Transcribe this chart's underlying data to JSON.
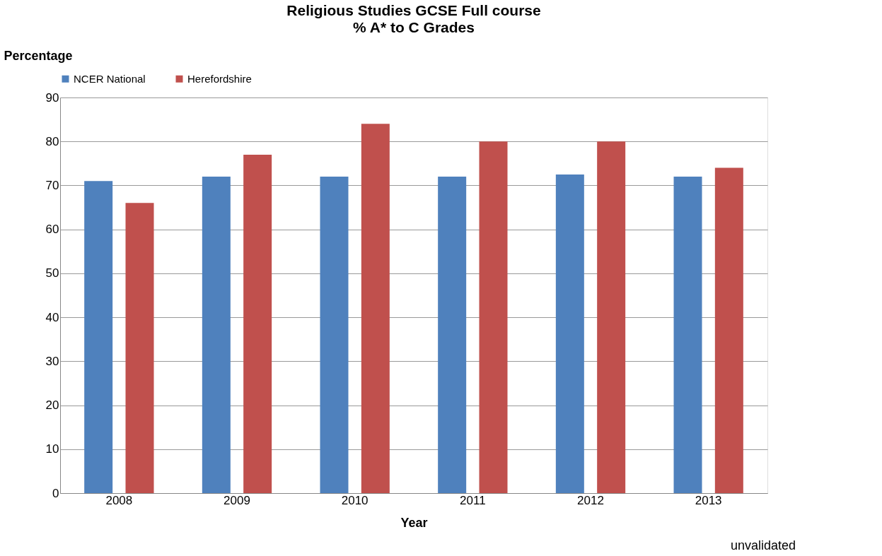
{
  "chart_data": {
    "type": "bar",
    "title": "Religious Studies   GCSE Full course",
    "subtitle": "% A* to C Grades",
    "xlabel": "Year",
    "ylabel": "Percentage",
    "categories": [
      "2008",
      "2009",
      "2010",
      "2011",
      "2012",
      "2013"
    ],
    "series": [
      {
        "name": "NCER National",
        "color": "#4f81bd",
        "values": [
          71,
          72,
          72,
          72,
          72.5,
          72
        ]
      },
      {
        "name": "Herefordshire",
        "color": "#c0504d",
        "values": [
          66,
          77,
          84,
          80,
          80,
          74
        ]
      }
    ],
    "ylim": [
      0,
      90
    ],
    "yticks": [
      0,
      10,
      20,
      30,
      40,
      50,
      60,
      70,
      80,
      90
    ],
    "grid": "y",
    "legend": "top",
    "annotations": [
      "unvalidated"
    ]
  }
}
